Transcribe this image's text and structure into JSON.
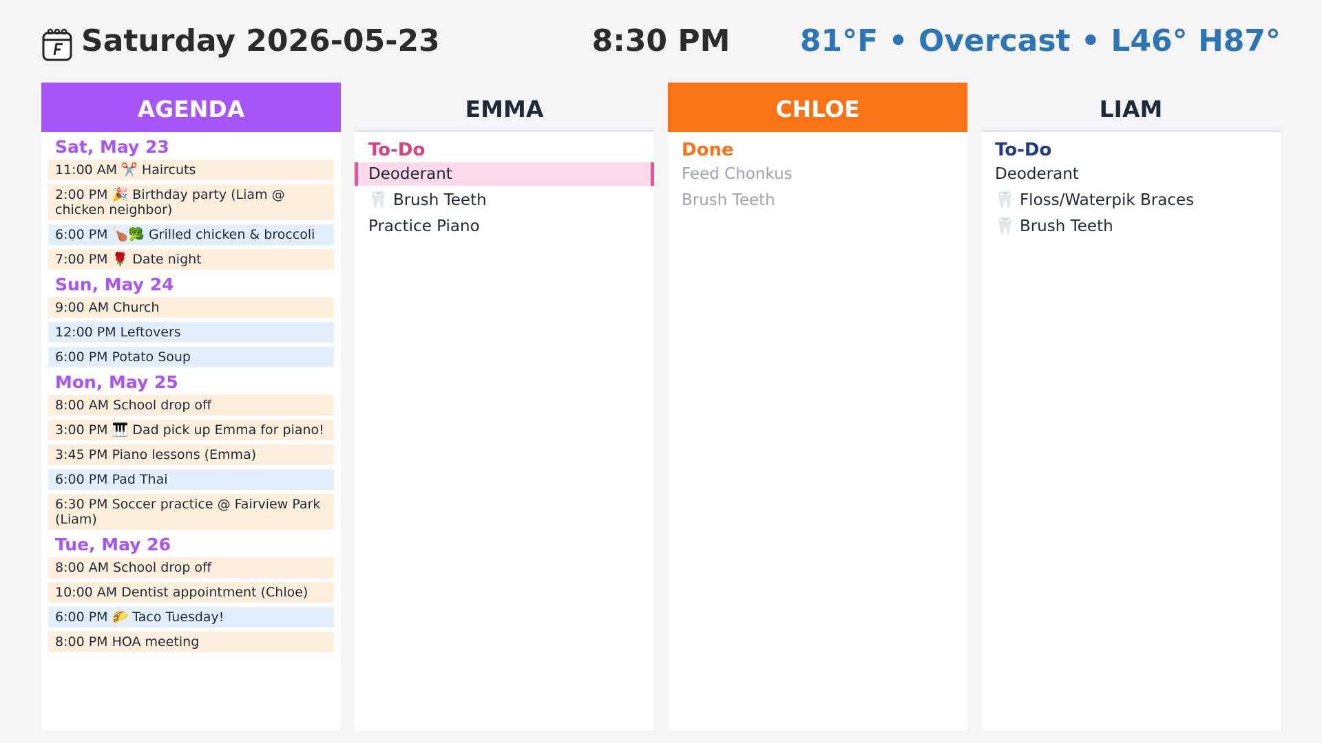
{
  "header": {
    "date": "Saturday 2026-05-23",
    "time": "8:30 PM",
    "weather": "81°F • Overcast • L46° H87°"
  },
  "agenda": {
    "title": "AGENDA",
    "color": "#a855f7",
    "days": [
      {
        "heading": "Sat, May 23",
        "events": [
          {
            "text": "11:00 AM ✂️ Haircuts",
            "color": "#fdefdc"
          },
          {
            "text": "2:00 PM 🎉 Birthday party (Liam @ chicken neighbor)",
            "color": "#fdefdc"
          },
          {
            "text": "6:00 PM 🍗🥦 Grilled chicken & broccoli",
            "color": "#e2effa"
          },
          {
            "text": "7:00 PM 🌹 Date night",
            "color": "#fdefdc"
          }
        ]
      },
      {
        "heading": "Sun, May 24",
        "events": [
          {
            "text": "9:00 AM Church",
            "color": "#fdefdc"
          },
          {
            "text": "12:00 PM Leftovers",
            "color": "#e2effa"
          },
          {
            "text": "6:00 PM Potato Soup",
            "color": "#e2effa"
          }
        ]
      },
      {
        "heading": "Mon, May 25",
        "events": [
          {
            "text": "8:00 AM School drop off",
            "color": "#fdefdc"
          },
          {
            "text": "3:00 PM 🎹 Dad pick up Emma for piano!",
            "color": "#fdefdc"
          },
          {
            "text": "3:45 PM Piano lessons (Emma)",
            "color": "#fdefdc"
          },
          {
            "text": "6:00 PM Pad Thai",
            "color": "#e2effa"
          },
          {
            "text": "6:30 PM Soccer practice @ Fairview Park (Liam)",
            "color": "#fdefdc"
          }
        ]
      },
      {
        "heading": "Tue, May 26",
        "events": [
          {
            "text": "8:00 AM School drop off",
            "color": "#fdefdc"
          },
          {
            "text": "10:00 AM Dentist appointment (Chloe)",
            "color": "#fdefdc"
          },
          {
            "text": "6:00 PM 🌮 Taco Tuesday!",
            "color": "#e2effa"
          },
          {
            "text": "8:00 PM HOA meeting",
            "color": "#fdefdc"
          }
        ]
      }
    ]
  },
  "columns": [
    {
      "title": "EMMA",
      "color": "#f3f4f6",
      "section": "To-Do",
      "section_color": "#db3f7e",
      "items": [
        {
          "text": "Deoderant",
          "highlight": true
        },
        {
          "text": "🦷 Brush Teeth"
        },
        {
          "text": "Practice Piano"
        }
      ]
    },
    {
      "title": "CHLOE",
      "color": "#f97316",
      "section": "Done",
      "section_color": "#f97316",
      "done": true,
      "items": [
        {
          "text": "Feed Chonkus"
        },
        {
          "text": "Brush Teeth"
        }
      ]
    },
    {
      "title": "LIAM",
      "color": "#f3f4f6",
      "section": "To-Do",
      "section_color": "#1e3a8a",
      "items": [
        {
          "text": "Deoderant"
        },
        {
          "text": "🦷 Floss/Waterpik Braces"
        },
        {
          "text": "🦷 Brush Teeth"
        }
      ]
    }
  ]
}
